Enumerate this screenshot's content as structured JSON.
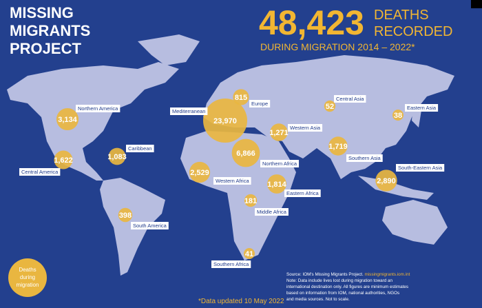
{
  "header": {
    "title_lines": [
      "MISSING",
      "MIGRANTS",
      "PROJECT"
    ],
    "total": 48423,
    "total_label": "48,423",
    "total_unit_lines": [
      "DEATHS",
      "RECORDED"
    ],
    "subtitle": "DURING MIGRATION 2014 – 2022*"
  },
  "regions": [
    {
      "name": "Northern America",
      "value": 3134,
      "value_label": "3,134"
    },
    {
      "name": "Central America",
      "value": 1622,
      "value_label": "1,622"
    },
    {
      "name": "Caribbean",
      "value": 1083,
      "value_label": "1,083"
    },
    {
      "name": "South America",
      "value": 398,
      "value_label": "398"
    },
    {
      "name": "Mediterranean",
      "value": 23970,
      "value_label": "23,970"
    },
    {
      "name": "Europe",
      "value": 815,
      "value_label": "815"
    },
    {
      "name": "Western Asia",
      "value": 1271,
      "value_label": "1,271"
    },
    {
      "name": "Northern Africa",
      "value": 6866,
      "value_label": "6,866"
    },
    {
      "name": "Western Africa",
      "value": 2529,
      "value_label": "2,529"
    },
    {
      "name": "Eastern Africa",
      "value": 1814,
      "value_label": "1,814"
    },
    {
      "name": "Middle Africa",
      "value": 181,
      "value_label": "181"
    },
    {
      "name": "Southern Africa",
      "value": 41,
      "value_label": "41"
    },
    {
      "name": "Central Asia",
      "value": 52,
      "value_label": "52"
    },
    {
      "name": "Eastern Asia",
      "value": 38,
      "value_label": "38"
    },
    {
      "name": "Southern Asia",
      "value": 1719,
      "value_label": "1,719"
    },
    {
      "name": "South-Eastern Asia",
      "value": 2890,
      "value_label": "2,890"
    }
  ],
  "legend": {
    "lines": [
      "Deaths",
      "during",
      "migration"
    ]
  },
  "footnote": "*Data updated 10 May 2022",
  "source": {
    "lines": [
      "Source: IOM's Missing Migrants Project. ",
      "missingmigrants.iom.int",
      "Note: Data include lives lost during migration toward an",
      "international destination only. All figures are minimum estimates",
      "based on information from IOM, national authorities, NGOs",
      "and media sources. Not to scale."
    ]
  }
}
